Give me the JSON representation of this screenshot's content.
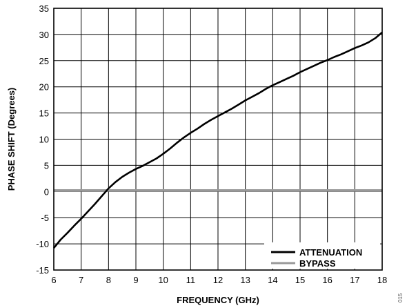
{
  "chart_data": {
    "type": "line",
    "title": "",
    "xlabel": "FREQUENCY (GHz)",
    "ylabel": "PHASE SHIFT (Degrees)",
    "xlim": [
      6,
      18
    ],
    "ylim": [
      -15,
      35
    ],
    "x_ticks": [
      6,
      7,
      8,
      9,
      10,
      11,
      12,
      13,
      14,
      15,
      16,
      17,
      18
    ],
    "y_ticks": [
      -15,
      -10,
      -5,
      0,
      5,
      10,
      15,
      20,
      25,
      30,
      35
    ],
    "grid": true,
    "legend_position": "bottom-right",
    "corner_code": "015",
    "series": [
      {
        "name": "ATTENUATION",
        "color": "#000000",
        "x": [
          6.0,
          6.25,
          6.5,
          6.75,
          7.0,
          7.25,
          7.5,
          7.75,
          7.9,
          8.0,
          8.25,
          8.5,
          8.75,
          9.0,
          9.25,
          9.5,
          9.75,
          10.0,
          10.25,
          10.5,
          10.75,
          11.0,
          11.25,
          11.5,
          11.75,
          12.0,
          12.25,
          12.5,
          12.75,
          13.0,
          13.25,
          13.5,
          13.75,
          14.0,
          14.25,
          14.5,
          14.75,
          15.0,
          15.25,
          15.5,
          15.75,
          16.0,
          16.25,
          16.5,
          16.75,
          17.0,
          17.25,
          17.5,
          17.75,
          18.0
        ],
        "y": [
          -10.8,
          -9.2,
          -7.9,
          -6.5,
          -5.2,
          -3.8,
          -2.4,
          -0.9,
          0.0,
          0.6,
          1.8,
          2.8,
          3.6,
          4.3,
          4.9,
          5.6,
          6.3,
          7.2,
          8.2,
          9.3,
          10.3,
          11.2,
          12.0,
          12.9,
          13.7,
          14.4,
          15.1,
          15.8,
          16.6,
          17.4,
          18.1,
          18.8,
          19.6,
          20.3,
          20.9,
          21.5,
          22.1,
          22.8,
          23.4,
          24.0,
          24.6,
          25.1,
          25.7,
          26.2,
          26.8,
          27.4,
          27.9,
          28.5,
          29.3,
          30.4
        ]
      },
      {
        "name": "BYPASS",
        "color": "#999999",
        "x": [
          6,
          18
        ],
        "y": [
          0.2,
          0.2
        ]
      }
    ]
  }
}
